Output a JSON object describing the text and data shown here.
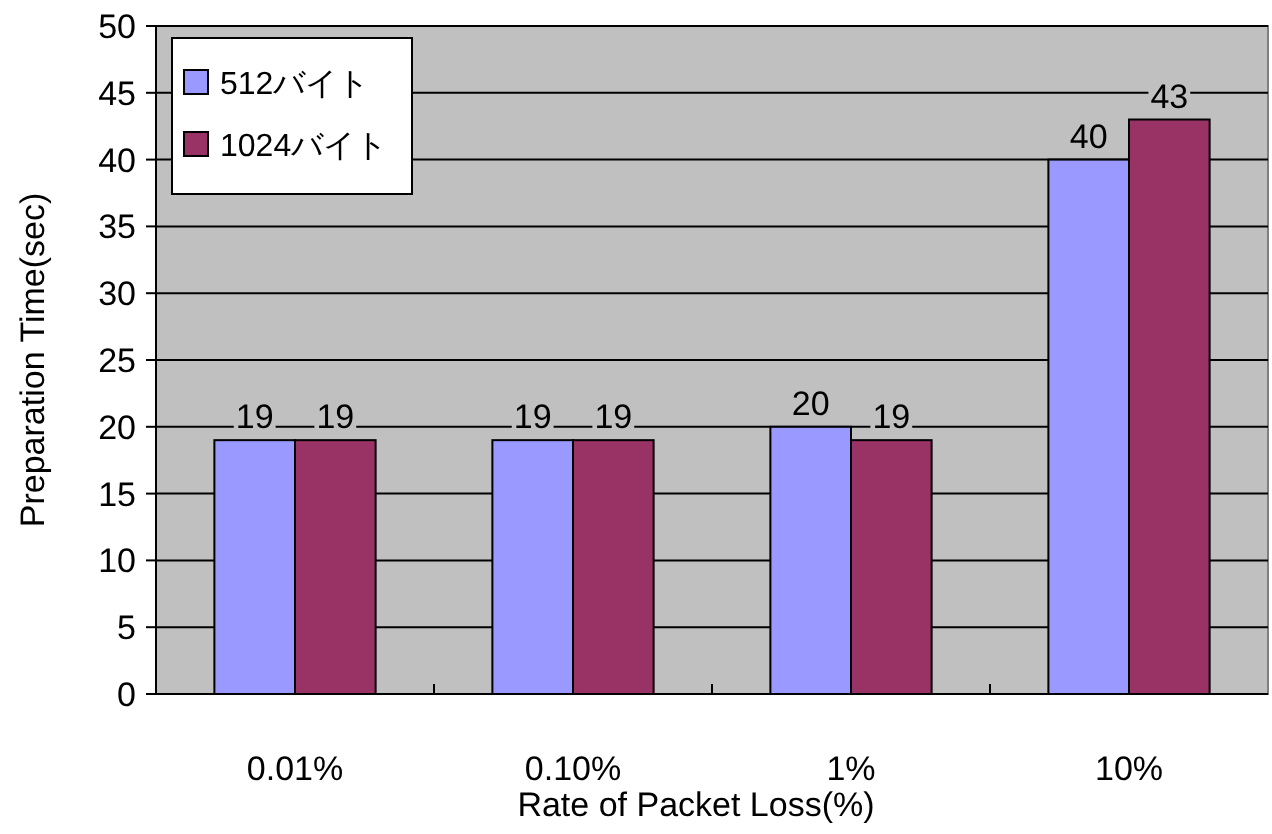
{
  "chart_data": {
    "type": "bar",
    "xlabel": "Rate of Packet Loss(%)",
    "ylabel": "Preparation Time(sec)",
    "categories": [
      "0.01%",
      "0.10%",
      "1%",
      "10%"
    ],
    "series": [
      {
        "name": "512バイト",
        "color": "#9999ff",
        "values": [
          19,
          19,
          20,
          40
        ]
      },
      {
        "name": "1024バイト",
        "color": "#993366",
        "values": [
          19,
          19,
          19,
          43
        ]
      }
    ],
    "ylim": [
      0,
      50
    ],
    "yticks": [
      0,
      5,
      10,
      15,
      20,
      25,
      30,
      35,
      40,
      45,
      50
    ],
    "grid": "y",
    "legend": "top left",
    "data_labels": true
  }
}
